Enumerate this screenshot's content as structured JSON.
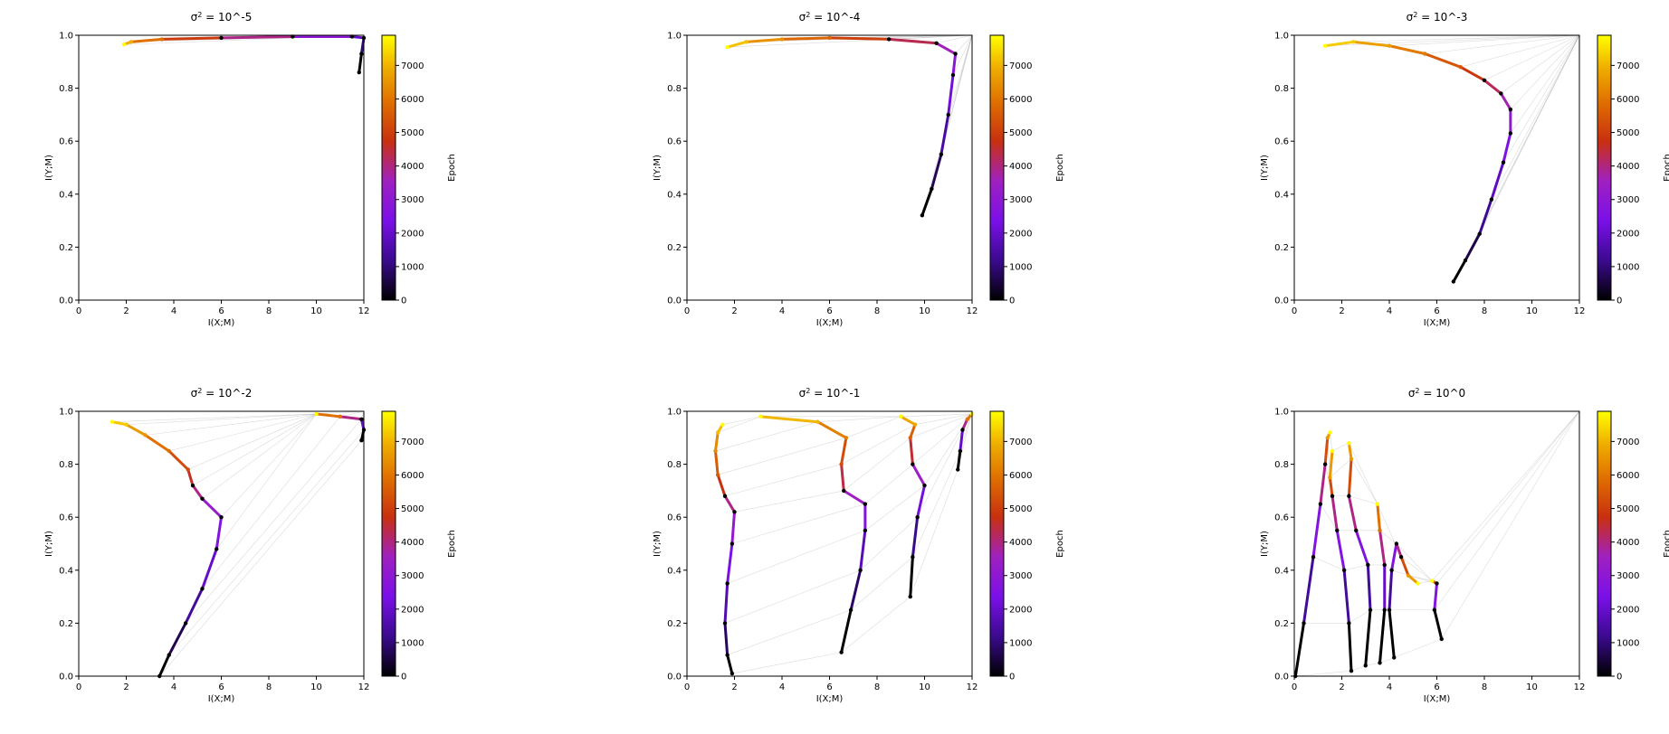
{
  "figure": {
    "colorbar": {
      "label": "Epoch",
      "ticks": [
        0,
        1000,
        2000,
        3000,
        4000,
        5000,
        6000,
        7000
      ],
      "max": 7900,
      "colormap": "gnuplot"
    }
  },
  "chart_data": [
    {
      "type": "line",
      "title_prefix": "σ",
      "title_sup": "2",
      "title_suffix": " = 10^-5",
      "xlabel": "I(X;M)",
      "ylabel": "I(Y;M)",
      "xlim": [
        0,
        12
      ],
      "ylim": [
        0,
        1.0
      ],
      "xticks": [
        0,
        2,
        4,
        6,
        8,
        10,
        12
      ],
      "yticks": [
        0.0,
        0.2,
        0.4,
        0.6,
        0.8,
        1.0
      ],
      "grid": false,
      "series": [
        {
          "points": [
            [
              11.8,
              0.86
            ],
            [
              11.9,
              0.93
            ],
            [
              12.0,
              0.99
            ],
            [
              11.5,
              0.995
            ],
            [
              9.0,
              0.995
            ],
            [
              6.0,
              0.99
            ],
            [
              3.5,
              0.985
            ],
            [
              2.2,
              0.975
            ],
            [
              1.9,
              0.965
            ]
          ]
        }
      ]
    },
    {
      "type": "line",
      "title_prefix": "σ",
      "title_sup": "2",
      "title_suffix": " = 10^-4",
      "xlabel": "I(X;M)",
      "ylabel": "I(Y;M)",
      "xlim": [
        0,
        12
      ],
      "ylim": [
        0,
        1.0
      ],
      "xticks": [
        0,
        2,
        4,
        6,
        8,
        10,
        12
      ],
      "yticks": [
        0.0,
        0.2,
        0.4,
        0.6,
        0.8,
        1.0
      ],
      "grid": false,
      "series": [
        {
          "points": [
            [
              9.9,
              0.32
            ],
            [
              10.3,
              0.42
            ],
            [
              10.7,
              0.55
            ],
            [
              11.0,
              0.7
            ],
            [
              11.2,
              0.85
            ],
            [
              11.3,
              0.93
            ],
            [
              10.5,
              0.97
            ],
            [
              8.5,
              0.985
            ],
            [
              6.0,
              0.99
            ],
            [
              4.0,
              0.985
            ],
            [
              2.5,
              0.975
            ],
            [
              1.7,
              0.955
            ]
          ]
        }
      ]
    },
    {
      "type": "line",
      "title_prefix": "σ",
      "title_sup": "2",
      "title_suffix": " = 10^-3",
      "xlabel": "I(X;M)",
      "ylabel": "I(Y;M)",
      "xlim": [
        0,
        12
      ],
      "ylim": [
        0,
        1.0
      ],
      "xticks": [
        0,
        2,
        4,
        6,
        8,
        10,
        12
      ],
      "yticks": [
        0.0,
        0.2,
        0.4,
        0.6,
        0.8,
        1.0
      ],
      "grid": false,
      "series": [
        {
          "points": [
            [
              6.7,
              0.07
            ],
            [
              7.2,
              0.15
            ],
            [
              7.8,
              0.25
            ],
            [
              8.3,
              0.38
            ],
            [
              8.8,
              0.52
            ],
            [
              9.1,
              0.63
            ],
            [
              9.1,
              0.72
            ],
            [
              8.7,
              0.78
            ],
            [
              8.0,
              0.83
            ],
            [
              7.0,
              0.88
            ],
            [
              5.5,
              0.93
            ],
            [
              4.0,
              0.96
            ],
            [
              2.5,
              0.975
            ],
            [
              1.3,
              0.96
            ]
          ]
        }
      ]
    },
    {
      "type": "line",
      "title_prefix": "σ",
      "title_sup": "2",
      "title_suffix": " = 10^-2",
      "xlabel": "I(X;M)",
      "ylabel": "I(Y;M)",
      "xlim": [
        0,
        12
      ],
      "ylim": [
        0,
        1.0
      ],
      "xticks": [
        0,
        2,
        4,
        6,
        8,
        10,
        12
      ],
      "yticks": [
        0.0,
        0.2,
        0.4,
        0.6,
        0.8,
        1.0
      ],
      "grid": false,
      "series": [
        {
          "points": [
            [
              3.4,
              0.0
            ],
            [
              3.8,
              0.08
            ],
            [
              4.5,
              0.2
            ],
            [
              5.2,
              0.33
            ],
            [
              5.8,
              0.48
            ],
            [
              6.0,
              0.6
            ],
            [
              5.2,
              0.67
            ],
            [
              4.8,
              0.72
            ],
            [
              4.6,
              0.78
            ],
            [
              3.8,
              0.85
            ],
            [
              2.8,
              0.91
            ],
            [
              2.0,
              0.95
            ],
            [
              1.4,
              0.96
            ]
          ]
        },
        {
          "points": [
            [
              11.9,
              0.89
            ],
            [
              12.0,
              0.93
            ],
            [
              11.9,
              0.97
            ],
            [
              11.0,
              0.98
            ],
            [
              10.0,
              0.99
            ]
          ]
        }
      ]
    },
    {
      "type": "line",
      "title_prefix": "σ",
      "title_sup": "2",
      "title_suffix": " = 10^-1",
      "xlabel": "I(X;M)",
      "ylabel": "I(Y;M)",
      "xlim": [
        0,
        12
      ],
      "ylim": [
        0,
        1.0
      ],
      "xticks": [
        0,
        2,
        4,
        6,
        8,
        10,
        12
      ],
      "yticks": [
        0.0,
        0.2,
        0.4,
        0.6,
        0.8,
        1.0
      ],
      "grid": false,
      "series": [
        {
          "points": [
            [
              1.9,
              0.01
            ],
            [
              1.7,
              0.08
            ],
            [
              1.6,
              0.2
            ],
            [
              1.7,
              0.35
            ],
            [
              1.9,
              0.5
            ],
            [
              2.0,
              0.62
            ],
            [
              1.6,
              0.68
            ],
            [
              1.3,
              0.76
            ],
            [
              1.2,
              0.85
            ],
            [
              1.3,
              0.92
            ],
            [
              1.5,
              0.95
            ]
          ]
        },
        {
          "points": [
            [
              6.5,
              0.09
            ],
            [
              6.9,
              0.25
            ],
            [
              7.3,
              0.4
            ],
            [
              7.5,
              0.55
            ],
            [
              7.5,
              0.65
            ],
            [
              6.6,
              0.7
            ],
            [
              6.5,
              0.8
            ],
            [
              6.7,
              0.9
            ],
            [
              5.5,
              0.96
            ],
            [
              3.1,
              0.98
            ]
          ]
        },
        {
          "points": [
            [
              9.4,
              0.3
            ],
            [
              9.5,
              0.45
            ],
            [
              9.7,
              0.6
            ],
            [
              10.0,
              0.72
            ],
            [
              9.5,
              0.8
            ],
            [
              9.4,
              0.9
            ],
            [
              9.6,
              0.95
            ],
            [
              9.0,
              0.98
            ]
          ]
        },
        {
          "points": [
            [
              11.4,
              0.78
            ],
            [
              11.5,
              0.85
            ],
            [
              11.6,
              0.93
            ],
            [
              11.8,
              0.97
            ],
            [
              12.0,
              0.99
            ]
          ]
        }
      ]
    },
    {
      "type": "line",
      "title_prefix": "σ",
      "title_sup": "2",
      "title_suffix": " = 10^0",
      "xlabel": "I(X;M)",
      "ylabel": "I(Y;M)",
      "xlim": [
        0,
        12
      ],
      "ylim": [
        0,
        1.0
      ],
      "xticks": [
        0,
        2,
        4,
        6,
        8,
        10,
        12
      ],
      "yticks": [
        0.0,
        0.2,
        0.4,
        0.6,
        0.8,
        1.0
      ],
      "grid": false,
      "series": [
        {
          "points": [
            [
              0.05,
              0.0
            ],
            [
              0.4,
              0.2
            ],
            [
              0.8,
              0.45
            ],
            [
              1.1,
              0.65
            ],
            [
              1.3,
              0.8
            ],
            [
              1.4,
              0.9
            ],
            [
              1.5,
              0.92
            ]
          ]
        },
        {
          "points": [
            [
              2.4,
              0.02
            ],
            [
              2.3,
              0.2
            ],
            [
              2.1,
              0.4
            ],
            [
              1.8,
              0.55
            ],
            [
              1.6,
              0.68
            ],
            [
              1.5,
              0.75
            ],
            [
              1.6,
              0.85
            ]
          ]
        },
        {
          "points": [
            [
              3.0,
              0.04
            ],
            [
              3.2,
              0.25
            ],
            [
              3.1,
              0.42
            ],
            [
              2.6,
              0.55
            ],
            [
              2.3,
              0.68
            ],
            [
              2.4,
              0.82
            ],
            [
              2.3,
              0.88
            ]
          ]
        },
        {
          "points": [
            [
              3.6,
              0.05
            ],
            [
              3.8,
              0.25
            ],
            [
              3.8,
              0.42
            ],
            [
              3.6,
              0.55
            ],
            [
              3.5,
              0.65
            ]
          ]
        },
        {
          "points": [
            [
              4.2,
              0.07
            ],
            [
              4.0,
              0.25
            ],
            [
              4.1,
              0.4
            ],
            [
              4.3,
              0.5
            ],
            [
              4.5,
              0.45
            ],
            [
              4.8,
              0.38
            ],
            [
              5.2,
              0.35
            ]
          ]
        },
        {
          "points": [
            [
              6.2,
              0.14
            ],
            [
              5.9,
              0.25
            ],
            [
              6.0,
              0.35
            ],
            [
              5.8,
              0.36
            ]
          ]
        }
      ]
    }
  ]
}
